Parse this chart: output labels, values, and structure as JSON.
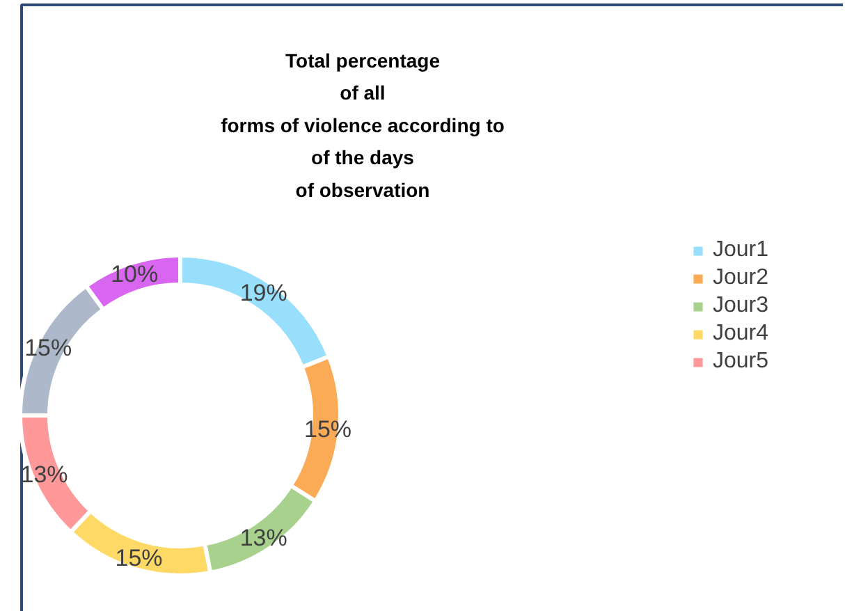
{
  "chart_data": {
    "type": "donut",
    "title": "Total percentage\nof all\nforms of violence according to\nof the days\nof observation",
    "categories": [
      "Jour1",
      "Jour2",
      "Jour3",
      "Jour4",
      "Jour5",
      null,
      null
    ],
    "values": [
      19,
      15,
      13,
      15,
      13,
      15,
      10
    ],
    "colors": [
      "#97dffc",
      "#fbaa55",
      "#a9d18e",
      "#ffd966",
      "#ff9999",
      "#adb9ca",
      "#d966f0"
    ],
    "value_labels": [
      "19%",
      "15%",
      "13%",
      "15%",
      "13%",
      "15%",
      "10%"
    ],
    "legend": "right"
  }
}
